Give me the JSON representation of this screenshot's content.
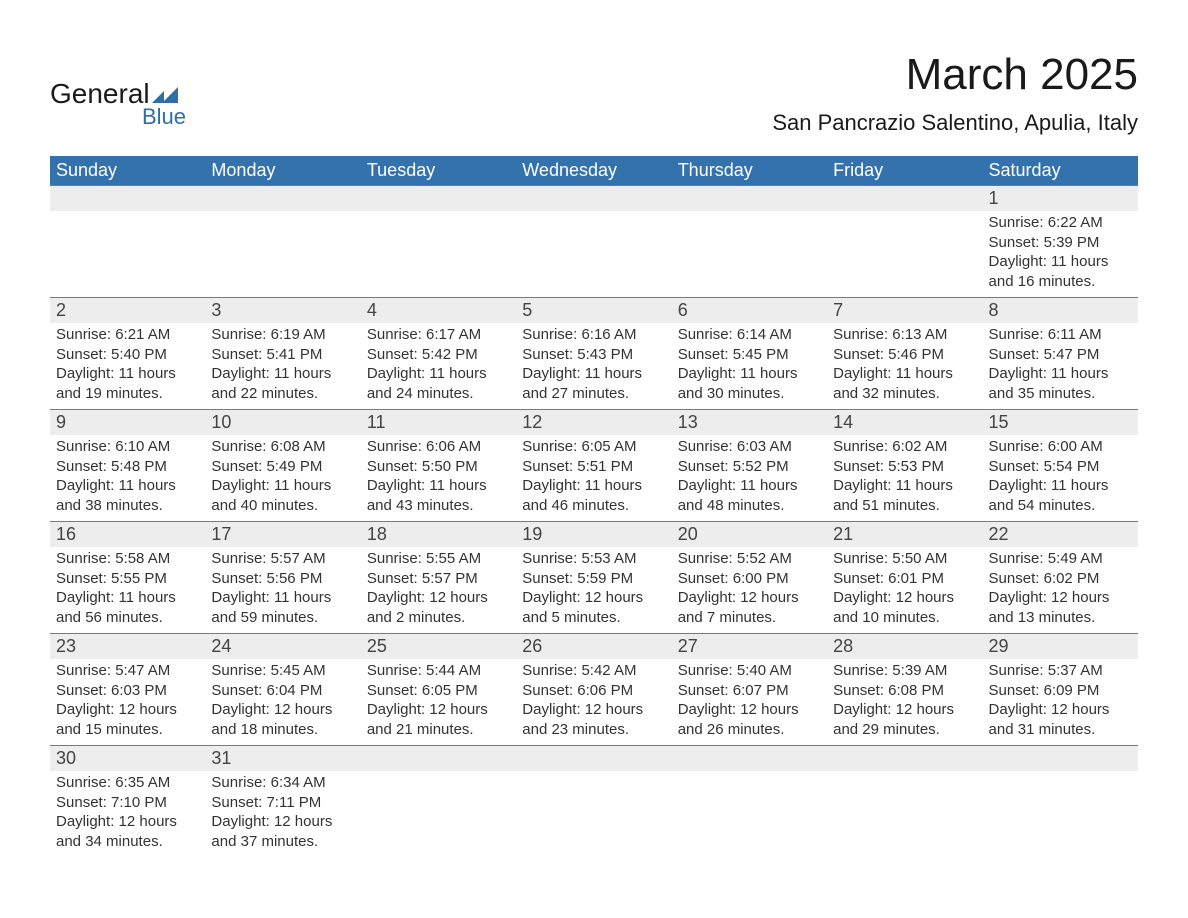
{
  "logo": {
    "word1": "General",
    "word2": "Blue"
  },
  "title": "March 2025",
  "location": "San Pancrazio Salentino, Apulia, Italy",
  "day_headers": [
    "Sunday",
    "Monday",
    "Tuesday",
    "Wednesday",
    "Thursday",
    "Friday",
    "Saturday"
  ],
  "colors": {
    "header_bg": "#3372ac",
    "header_text": "#ffffff",
    "daynum_bg": "#ededed",
    "row_border": "#4a86be",
    "logo_blue": "#2f6fa8",
    "body_text": "#333333",
    "page_bg": "#ffffff"
  },
  "typography": {
    "title_fontsize": 44,
    "location_fontsize": 22,
    "header_fontsize": 18,
    "daynum_fontsize": 18,
    "body_fontsize": 15
  },
  "layout": {
    "columns": 7,
    "week_start": "Sunday",
    "first_day_column_index": 6,
    "days_in_month": 31
  },
  "weeks": [
    [
      null,
      null,
      null,
      null,
      null,
      null,
      {
        "n": "1",
        "sunrise": "6:22 AM",
        "sunset": "5:39 PM",
        "daylight_h": 11,
        "daylight_m": 16
      }
    ],
    [
      {
        "n": "2",
        "sunrise": "6:21 AM",
        "sunset": "5:40 PM",
        "daylight_h": 11,
        "daylight_m": 19
      },
      {
        "n": "3",
        "sunrise": "6:19 AM",
        "sunset": "5:41 PM",
        "daylight_h": 11,
        "daylight_m": 22
      },
      {
        "n": "4",
        "sunrise": "6:17 AM",
        "sunset": "5:42 PM",
        "daylight_h": 11,
        "daylight_m": 24
      },
      {
        "n": "5",
        "sunrise": "6:16 AM",
        "sunset": "5:43 PM",
        "daylight_h": 11,
        "daylight_m": 27
      },
      {
        "n": "6",
        "sunrise": "6:14 AM",
        "sunset": "5:45 PM",
        "daylight_h": 11,
        "daylight_m": 30
      },
      {
        "n": "7",
        "sunrise": "6:13 AM",
        "sunset": "5:46 PM",
        "daylight_h": 11,
        "daylight_m": 32
      },
      {
        "n": "8",
        "sunrise": "6:11 AM",
        "sunset": "5:47 PM",
        "daylight_h": 11,
        "daylight_m": 35
      }
    ],
    [
      {
        "n": "9",
        "sunrise": "6:10 AM",
        "sunset": "5:48 PM",
        "daylight_h": 11,
        "daylight_m": 38
      },
      {
        "n": "10",
        "sunrise": "6:08 AM",
        "sunset": "5:49 PM",
        "daylight_h": 11,
        "daylight_m": 40
      },
      {
        "n": "11",
        "sunrise": "6:06 AM",
        "sunset": "5:50 PM",
        "daylight_h": 11,
        "daylight_m": 43
      },
      {
        "n": "12",
        "sunrise": "6:05 AM",
        "sunset": "5:51 PM",
        "daylight_h": 11,
        "daylight_m": 46
      },
      {
        "n": "13",
        "sunrise": "6:03 AM",
        "sunset": "5:52 PM",
        "daylight_h": 11,
        "daylight_m": 48
      },
      {
        "n": "14",
        "sunrise": "6:02 AM",
        "sunset": "5:53 PM",
        "daylight_h": 11,
        "daylight_m": 51
      },
      {
        "n": "15",
        "sunrise": "6:00 AM",
        "sunset": "5:54 PM",
        "daylight_h": 11,
        "daylight_m": 54
      }
    ],
    [
      {
        "n": "16",
        "sunrise": "5:58 AM",
        "sunset": "5:55 PM",
        "daylight_h": 11,
        "daylight_m": 56
      },
      {
        "n": "17",
        "sunrise": "5:57 AM",
        "sunset": "5:56 PM",
        "daylight_h": 11,
        "daylight_m": 59
      },
      {
        "n": "18",
        "sunrise": "5:55 AM",
        "sunset": "5:57 PM",
        "daylight_h": 12,
        "daylight_m": 2
      },
      {
        "n": "19",
        "sunrise": "5:53 AM",
        "sunset": "5:59 PM",
        "daylight_h": 12,
        "daylight_m": 5
      },
      {
        "n": "20",
        "sunrise": "5:52 AM",
        "sunset": "6:00 PM",
        "daylight_h": 12,
        "daylight_m": 7
      },
      {
        "n": "21",
        "sunrise": "5:50 AM",
        "sunset": "6:01 PM",
        "daylight_h": 12,
        "daylight_m": 10
      },
      {
        "n": "22",
        "sunrise": "5:49 AM",
        "sunset": "6:02 PM",
        "daylight_h": 12,
        "daylight_m": 13
      }
    ],
    [
      {
        "n": "23",
        "sunrise": "5:47 AM",
        "sunset": "6:03 PM",
        "daylight_h": 12,
        "daylight_m": 15
      },
      {
        "n": "24",
        "sunrise": "5:45 AM",
        "sunset": "6:04 PM",
        "daylight_h": 12,
        "daylight_m": 18
      },
      {
        "n": "25",
        "sunrise": "5:44 AM",
        "sunset": "6:05 PM",
        "daylight_h": 12,
        "daylight_m": 21
      },
      {
        "n": "26",
        "sunrise": "5:42 AM",
        "sunset": "6:06 PM",
        "daylight_h": 12,
        "daylight_m": 23
      },
      {
        "n": "27",
        "sunrise": "5:40 AM",
        "sunset": "6:07 PM",
        "daylight_h": 12,
        "daylight_m": 26
      },
      {
        "n": "28",
        "sunrise": "5:39 AM",
        "sunset": "6:08 PM",
        "daylight_h": 12,
        "daylight_m": 29
      },
      {
        "n": "29",
        "sunrise": "5:37 AM",
        "sunset": "6:09 PM",
        "daylight_h": 12,
        "daylight_m": 31
      }
    ],
    [
      {
        "n": "30",
        "sunrise": "6:35 AM",
        "sunset": "7:10 PM",
        "daylight_h": 12,
        "daylight_m": 34
      },
      {
        "n": "31",
        "sunrise": "6:34 AM",
        "sunset": "7:11 PM",
        "daylight_h": 12,
        "daylight_m": 37
      },
      null,
      null,
      null,
      null,
      null
    ]
  ],
  "labels": {
    "sunrise": "Sunrise: ",
    "sunset": "Sunset: ",
    "daylight_prefix": "Daylight: ",
    "hours_word": " hours and ",
    "minutes_word": " minutes."
  }
}
